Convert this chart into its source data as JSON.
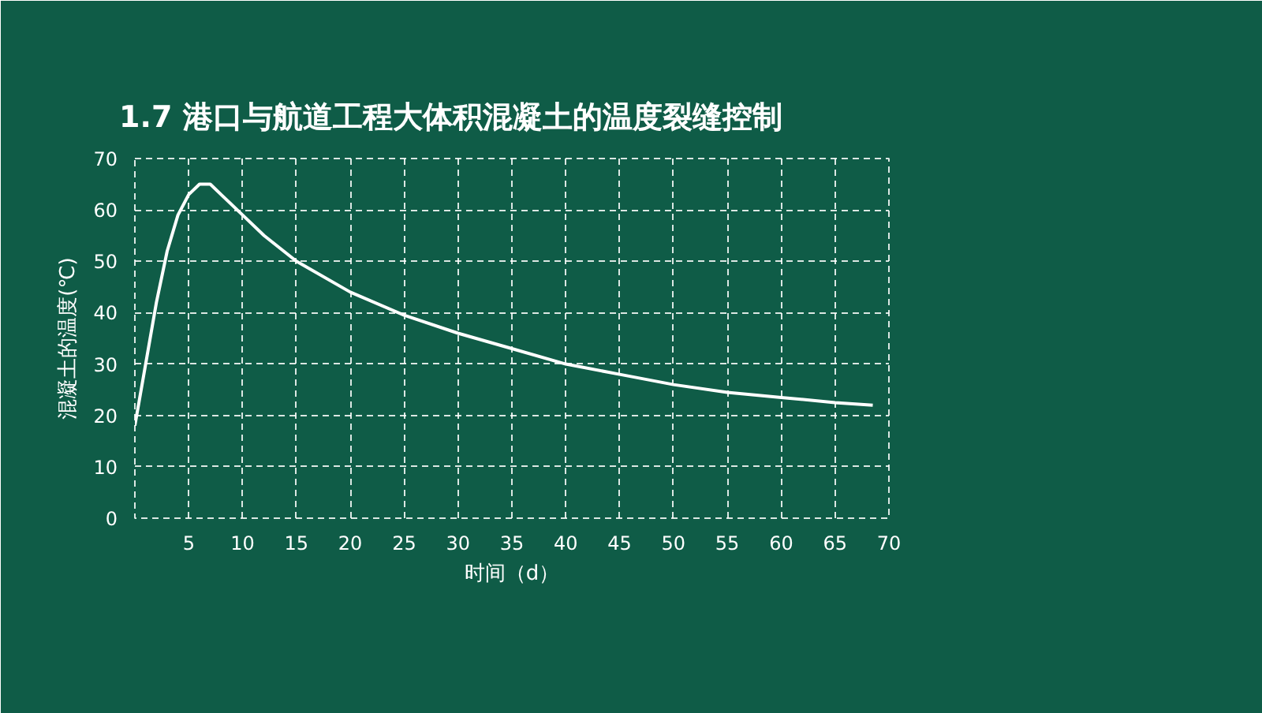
{
  "chart_data": {
    "type": "line",
    "title": "1.7 港口与航道工程大体积混凝土的温度裂缝控制",
    "xlabel": "时间（d）",
    "ylabel": "混凝土的温度(℃)",
    "x": [
      0,
      1,
      2,
      3,
      4,
      5,
      6,
      7,
      8,
      10,
      12,
      15,
      20,
      25,
      30,
      35,
      40,
      45,
      50,
      55,
      60,
      65,
      68.5
    ],
    "series": [
      {
        "color": "#ffffff",
        "values": [
          18,
          30,
          42,
          52,
          59,
          63,
          65,
          65,
          63,
          59,
          55,
          50,
          44,
          39.5,
          36,
          33,
          30,
          28,
          26,
          24.5,
          23.5,
          22.5,
          22
        ]
      }
    ],
    "xlim": [
      0,
      70
    ],
    "ylim": [
      0,
      70
    ],
    "xticks": [
      5,
      10,
      15,
      20,
      25,
      30,
      35,
      40,
      45,
      50,
      55,
      60,
      65,
      70
    ],
    "yticks": [
      0,
      10,
      20,
      30,
      40,
      50,
      60,
      70
    ],
    "grid": true,
    "marker": "none",
    "line_style": "solid"
  }
}
